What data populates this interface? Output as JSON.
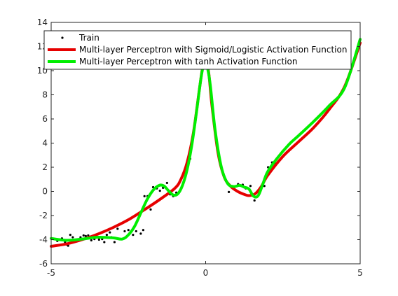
{
  "chart_data": {
    "type": "line",
    "title": "",
    "xlabel": "",
    "ylabel": "",
    "xlim": [
      -5,
      5
    ],
    "ylim": [
      -6,
      14
    ],
    "xticks": [
      -5,
      0,
      5
    ],
    "yticks": [
      -6,
      -4,
      -2,
      0,
      2,
      4,
      6,
      8,
      10,
      12,
      14
    ],
    "xtick_labels": [
      "-5",
      "0",
      "5"
    ],
    "ytick_labels": [
      "-6",
      "-4",
      "-2",
      "0",
      "2",
      "4",
      "6",
      "8",
      "10",
      "12",
      "14"
    ],
    "grid": false,
    "legend_position": "top",
    "series": [
      {
        "name": "Train",
        "kind": "scatter",
        "color": "#000000",
        "x": [
          -4.8,
          -4.75,
          -4.65,
          -4.55,
          -4.5,
          -4.45,
          -4.38,
          -4.3,
          -4.05,
          -3.95,
          -3.88,
          -3.8,
          -3.7,
          -3.6,
          -3.45,
          -3.35,
          -3.28,
          -3.2,
          -3.1,
          -3.05,
          -2.95,
          -2.85,
          -2.62,
          -2.5,
          -2.35,
          -2.25,
          -2.1,
          -2.02,
          -1.98,
          -1.88,
          -1.78,
          -1.7,
          -1.58,
          -1.48,
          -1.38,
          -1.25,
          -1.15,
          -1.05,
          -0.95,
          -0.6,
          -0.5,
          0.75,
          1.05,
          1.2,
          1.3,
          1.45,
          1.58,
          1.9,
          2.02,
          2.1,
          2.15,
          2.25
        ],
        "y": [
          -4.1,
          -4.0,
          -3.9,
          -4.2,
          -4.4,
          -4.5,
          -3.6,
          -3.8,
          -3.8,
          -3.65,
          -3.7,
          -3.65,
          -4.05,
          -3.95,
          -4.0,
          -3.95,
          -4.2,
          -3.6,
          -3.4,
          -3.8,
          -4.2,
          -3.1,
          -3.3,
          -3.2,
          -3.6,
          -3.3,
          -3.5,
          -3.2,
          -0.4,
          -0.4,
          -1.5,
          0.35,
          0.25,
          0.05,
          0.3,
          0.7,
          -0.25,
          -0.4,
          -0.1,
          2.0,
          2.7,
          -0.05,
          0.6,
          0.55,
          0.25,
          0.45,
          -0.75,
          0.45,
          2.0,
          1.7,
          2.4,
          2.3
        ]
      },
      {
        "name": "Multi-layer Perceptron with Sigmoid/Logistic Activation Function",
        "kind": "line",
        "color": "#e60000",
        "x": [
          -5,
          -4.5,
          -4,
          -3.5,
          -3,
          -2.5,
          -2,
          -1.5,
          -1,
          -0.8,
          -0.6,
          -0.4,
          -0.2,
          -0.1,
          0,
          0.1,
          0.2,
          0.4,
          0.6,
          0.8,
          1.0,
          1.2,
          1.4,
          1.6,
          1.8,
          2.0,
          2.5,
          3.0,
          3.5,
          4.0,
          4.5,
          5.0
        ],
        "y": [
          -4.55,
          -4.35,
          -4.0,
          -3.55,
          -3.0,
          -2.35,
          -1.55,
          -0.7,
          0.25,
          1.0,
          2.4,
          4.8,
          8.5,
          10.2,
          10.8,
          9.8,
          7.2,
          3.2,
          1.2,
          0.45,
          0.05,
          -0.2,
          -0.35,
          -0.2,
          0.4,
          1.3,
          2.9,
          4.1,
          5.3,
          6.8,
          8.7,
          12.3
        ]
      },
      {
        "name": "Multi-layer Perceptron with tanh Activation Function",
        "kind": "line",
        "color": "#00ee00",
        "x": [
          -5,
          -4.5,
          -4,
          -3.5,
          -3,
          -2.7,
          -2.5,
          -2.3,
          -2.1,
          -1.9,
          -1.7,
          -1.5,
          -1.35,
          -1.2,
          -1.05,
          -0.9,
          -0.75,
          -0.6,
          -0.45,
          -0.3,
          -0.15,
          -0.05,
          0.05,
          0.15,
          0.3,
          0.5,
          0.7,
          0.9,
          1.1,
          1.25,
          1.4,
          1.55,
          1.7,
          1.85,
          2.0,
          2.3,
          2.7,
          3.0,
          3.5,
          4.0,
          4.5,
          5.0
        ],
        "y": [
          -3.9,
          -4.05,
          -3.95,
          -3.8,
          -3.85,
          -3.95,
          -3.6,
          -2.9,
          -1.8,
          -0.7,
          0.1,
          0.5,
          0.45,
          0.05,
          -0.3,
          -0.2,
          0.5,
          1.8,
          3.8,
          6.5,
          9.4,
          10.6,
          10.3,
          8.8,
          5.2,
          2.1,
          0.7,
          0.4,
          0.5,
          0.35,
          0.2,
          -0.4,
          -0.35,
          0.6,
          1.6,
          2.7,
          3.9,
          4.6,
          5.8,
          7.1,
          8.6,
          12.6
        ]
      }
    ]
  }
}
